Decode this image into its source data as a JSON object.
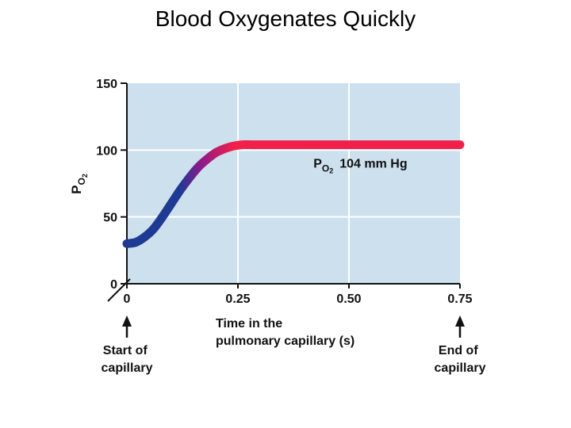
{
  "title": "Blood Oxygenates Quickly",
  "chart_data": {
    "type": "line",
    "xlabel_lines": [
      "Time in the",
      "pulmonary capillary (s)"
    ],
    "ylabel_main": "P",
    "ylabel_sub": "O",
    "ylabel_subsub": "2",
    "xlim": [
      0,
      0.75
    ],
    "ylim": [
      0,
      150
    ],
    "x_ticks": [
      {
        "value": 0,
        "label": "0"
      },
      {
        "value": 0.25,
        "label": "0.25"
      },
      {
        "value": 0.5,
        "label": "0.50"
      },
      {
        "value": 0.75,
        "label": "0.75"
      }
    ],
    "y_ticks": [
      {
        "value": 0,
        "label": "0"
      },
      {
        "value": 50,
        "label": "50"
      },
      {
        "value": 100,
        "label": "100"
      },
      {
        "value": 150,
        "label": "150"
      }
    ],
    "grid": {
      "x_lines": [
        0.25,
        0.5
      ],
      "y_lines": [
        50,
        100
      ]
    },
    "series": [
      {
        "x": [
          0,
          0.02,
          0.04,
          0.06,
          0.08,
          0.1,
          0.12,
          0.14,
          0.16,
          0.18,
          0.2,
          0.22,
          0.24,
          0.26,
          0.28,
          0.3,
          0.4,
          0.5,
          0.6,
          0.75
        ],
        "y": [
          30,
          31,
          35,
          41,
          50,
          60,
          70,
          79,
          87,
          93,
          98,
          101,
          103,
          104,
          104,
          104,
          104,
          104,
          104,
          104
        ]
      }
    ],
    "colors": {
      "start": "#1f3a93",
      "mid": "#8b1a8b",
      "end": "#f0204a",
      "plot_bg": "#cde0ee",
      "grid": "#ffffff",
      "axis": "#111111"
    },
    "annotation": {
      "main": "P",
      "sub": "O",
      "subsub": "2",
      "value": "104 mm Hg",
      "x": 0.42,
      "y": 87
    },
    "markers": {
      "start": {
        "x": 0,
        "lines": [
          "Start of",
          "capillary"
        ]
      },
      "end": {
        "x": 0.75,
        "lines": [
          "End of",
          "capillary"
        ]
      }
    }
  }
}
